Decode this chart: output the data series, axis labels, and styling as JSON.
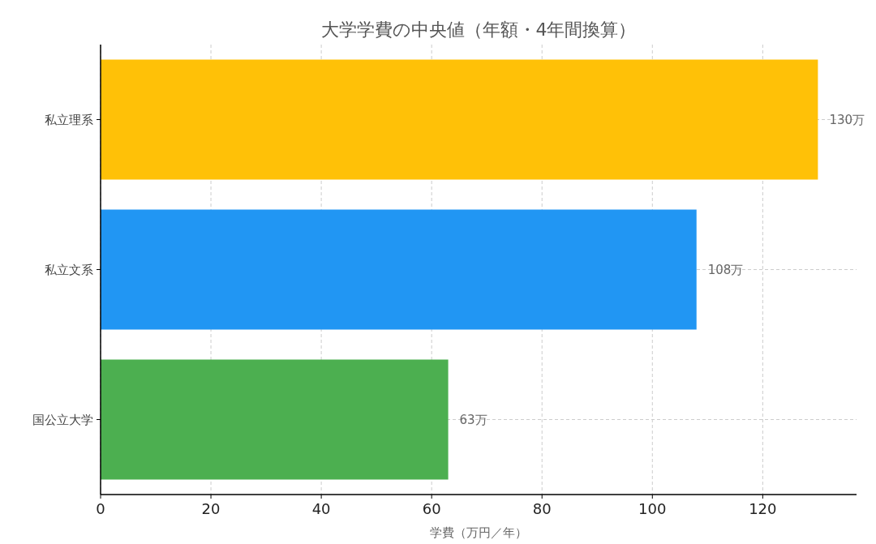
{
  "chart_data": {
    "type": "bar",
    "orientation": "horizontal",
    "title": "大学学費の中央値（年額・4年間換算）",
    "xlabel": "学費（万円／年）",
    "categories": [
      "私立理系",
      "私立文系",
      "国公立大学"
    ],
    "values": [
      130,
      108,
      63
    ],
    "colors": [
      "#ffc107",
      "#2196f3",
      "#4caf50"
    ],
    "value_labels": [
      "130万",
      "108万",
      "63万"
    ],
    "xlim": [
      0,
      137
    ],
    "xticks": [
      0,
      20,
      40,
      60,
      80,
      100,
      120
    ],
    "grid": true
  }
}
